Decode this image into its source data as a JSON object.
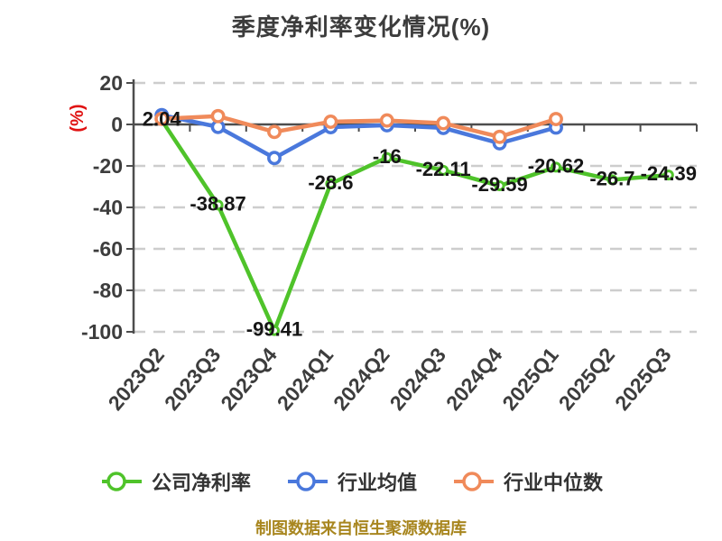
{
  "title": "季度净利率变化情况(%)",
  "source_note": "制图数据来自恒生聚源数据库",
  "chart_data": {
    "type": "line",
    "title": "季度净利率变化情况(%)",
    "y_unit": "(%)",
    "categories": [
      "2023Q2",
      "2023Q3",
      "2023Q4",
      "2024Q1",
      "2024Q2",
      "2024Q3",
      "2024Q4",
      "2025Q1",
      "2025Q2",
      "2025Q3"
    ],
    "y_ticks": [
      20,
      0,
      -20,
      -40,
      -60,
      -80,
      -100
    ],
    "ylim": [
      -100,
      20
    ],
    "grid": "dashed-horizontal",
    "legend_position": "bottom",
    "values_estimated_for_unlabeled_series": true,
    "series": [
      {
        "name": "公司净利率",
        "key": "company",
        "color": "#4fc32a",
        "values": [
          2.04,
          -38.87,
          -99.41,
          -28.6,
          -16,
          -22.11,
          -29.59,
          -20.62,
          -26.7,
          -24.39
        ],
        "labels": [
          "2.04",
          "-38.87",
          "-99.41",
          "-28.6",
          "-16",
          "-22.11",
          "-29.59",
          "-20.62",
          "-26.7",
          "-24.39"
        ]
      },
      {
        "name": "行业均值",
        "key": "industry-average",
        "color": "#4a78dc",
        "values": [
          4.5,
          -1.2,
          -16.2,
          -1.3,
          -0.4,
          -1.7,
          -9.1,
          -1.5,
          null,
          null
        ],
        "labels": null
      },
      {
        "name": "行业中位数",
        "key": "industry-median",
        "color": "#f08a5a",
        "values": [
          2.7,
          4.0,
          -3.6,
          1.3,
          1.9,
          0.6,
          -6.0,
          2.6,
          null,
          null
        ],
        "labels": null
      }
    ],
    "colors": {
      "axis": "#4d4d4d",
      "grid": "#cdcdcd",
      "tick_label": "#3d3d3d",
      "data_label": "#161616",
      "title": "#3c3c3c",
      "unit_label": "#e01212",
      "source_note": "#a8861f",
      "marker_fill": "#ffffff"
    }
  }
}
